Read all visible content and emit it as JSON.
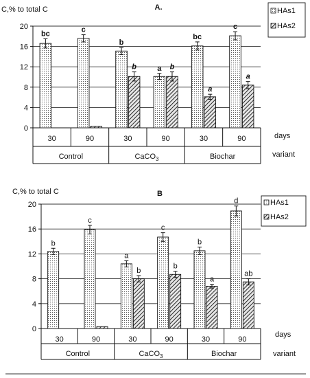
{
  "chart_data": [
    {
      "type": "bar",
      "panel": "A.",
      "ylabel": "C,% to total C",
      "ylim": [
        0,
        20
      ],
      "yticks": [
        0,
        4,
        8,
        12,
        16,
        20
      ],
      "grid": "horizontal",
      "legend_position": "top-right",
      "axis_rows": [
        "days",
        "variant"
      ],
      "groups": [
        {
          "name": "Control",
          "sub": ""
        },
        {
          "name": "CaCO",
          "sub": "3"
        },
        {
          "name": "Biochar",
          "sub": ""
        }
      ],
      "days": [
        "30",
        "90",
        "30",
        "90",
        "30",
        "90"
      ],
      "series": [
        {
          "name": "HAs1",
          "values": [
            16.6,
            17.6,
            15.1,
            10.1,
            16.1,
            18.1
          ],
          "errors": [
            0.9,
            0.7,
            0.7,
            0.6,
            0.8,
            0.8
          ],
          "letters": [
            "bc",
            "c",
            "b",
            "a",
            "bc",
            "c"
          ],
          "letter_style": "bold"
        },
        {
          "name": "HAs2",
          "values": [
            0,
            0.3,
            10.1,
            10.1,
            6.1,
            8.4
          ],
          "errors": [
            0,
            0,
            0.9,
            0.9,
            0.5,
            0.7
          ],
          "letters": [
            "",
            "",
            "b",
            "b",
            "a",
            "a"
          ],
          "letter_style": "italic"
        }
      ]
    },
    {
      "type": "bar",
      "panel": "B",
      "ylabel": "C,% to total C",
      "ylim": [
        0,
        20
      ],
      "yticks": [
        0,
        4,
        8,
        12,
        16,
        20
      ],
      "grid": "horizontal",
      "legend_position": "top-right",
      "axis_rows": [
        "days",
        "variant"
      ],
      "groups": [
        {
          "name": "Control",
          "sub": ""
        },
        {
          "name": "CaCO",
          "sub": "3"
        },
        {
          "name": "Biochar",
          "sub": ""
        }
      ],
      "days": [
        "30",
        "90",
        "30",
        "90",
        "30",
        "90"
      ],
      "series": [
        {
          "name": "HAs1",
          "values": [
            12.4,
            15.9,
            10.4,
            14.7,
            12.5,
            18.9
          ],
          "errors": [
            0.5,
            0.7,
            0.5,
            0.7,
            0.6,
            0.8
          ],
          "letters": [
            "b",
            "c",
            "a",
            "c",
            "b",
            "d"
          ],
          "letter_style": "normal"
        },
        {
          "name": "HAs2",
          "values": [
            0,
            0.3,
            8.0,
            8.7,
            6.8,
            7.5
          ],
          "errors": [
            0,
            0,
            0.5,
            0.5,
            0.3,
            0.5
          ],
          "letters": [
            "",
            "",
            "b",
            "b",
            "a",
            "ab"
          ],
          "letter_style": "normal"
        }
      ]
    }
  ]
}
